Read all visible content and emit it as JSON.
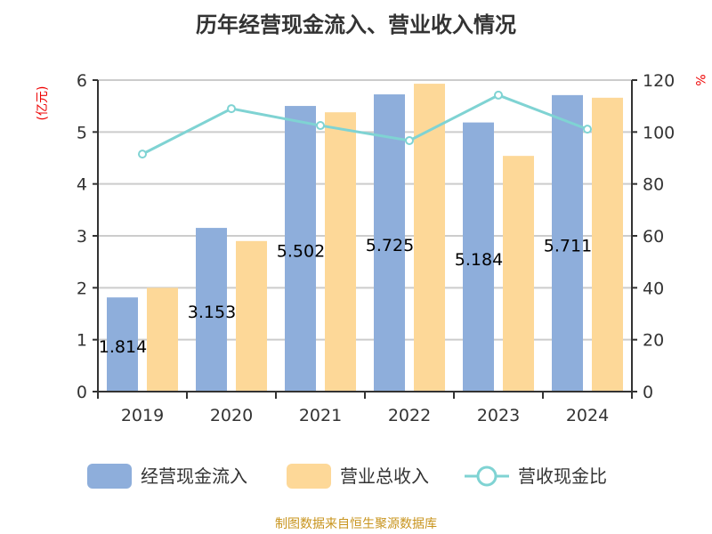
{
  "chart_data": {
    "type": "bar",
    "title": "历年经营现金流入、营业收入情况",
    "categories": [
      "2019",
      "2020",
      "2021",
      "2022",
      "2023",
      "2024"
    ],
    "ylabel": "(亿元)",
    "ylabel_right": "%",
    "ylim": [
      0,
      6
    ],
    "ylim_right": [
      0,
      120
    ],
    "yticks": [
      "0",
      "1",
      "2",
      "3",
      "4",
      "5",
      "6"
    ],
    "yticks_right": [
      "0",
      "20",
      "40",
      "60",
      "80",
      "100",
      "120"
    ],
    "grid": true,
    "legend_position": "bottom",
    "series": [
      {
        "name": "经营现金流入",
        "type": "bar",
        "axis": "left",
        "color": "#8eaedb",
        "values": [
          1.814,
          3.153,
          5.502,
          5.725,
          5.184,
          5.711
        ],
        "labels": [
          "1.814",
          "3.153",
          "5.502",
          "5.725",
          "5.184",
          "5.711"
        ]
      },
      {
        "name": "营业总收入",
        "type": "bar",
        "axis": "left",
        "color": "#fdd898",
        "values": [
          2.0,
          2.9,
          5.38,
          5.93,
          4.54,
          5.66
        ]
      },
      {
        "name": "营收现金比",
        "type": "line",
        "axis": "right",
        "color": "#7fd3d3",
        "values": [
          91.5,
          109,
          102.5,
          96.7,
          114.2,
          101.1
        ]
      }
    ]
  },
  "source": "制图数据来自恒生聚源数据库"
}
